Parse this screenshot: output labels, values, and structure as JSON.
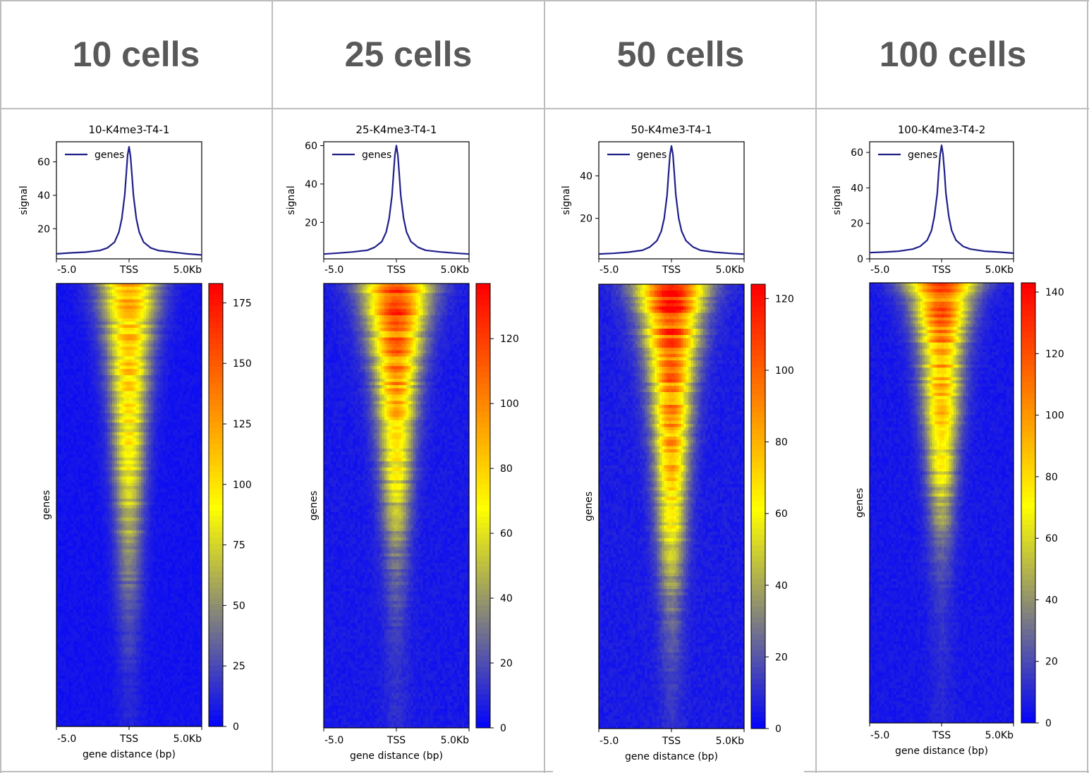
{
  "headers": [
    "10 cells",
    "25 cells",
    "50 cells",
    "100 cells"
  ],
  "chart_data": [
    {
      "type": "heatmap",
      "title": "10-K4me3-T4-1",
      "profile": {
        "type": "line",
        "legend": "genes",
        "legend_position": "top-left",
        "ylabel": "signal",
        "ylim": [
          2,
          72
        ],
        "yticks": [
          20,
          40,
          60
        ],
        "x": [
          -5000,
          -4000,
          -3000,
          -2000,
          -1500,
          -1000,
          -700,
          -500,
          -300,
          -200,
          -100,
          0,
          100,
          200,
          300,
          500,
          700,
          1000,
          1500,
          2000,
          3000,
          4000,
          5000
        ],
        "y": [
          5,
          5.6,
          6,
          7,
          8.5,
          12,
          18,
          26,
          40,
          52,
          64,
          69,
          63,
          52,
          40,
          26,
          18,
          12,
          8.5,
          7,
          6,
          5,
          4.3
        ],
        "xticks": [
          "-5.0",
          "TSS",
          "5.0Kb"
        ]
      },
      "heatmap": {
        "ylabel": "genes",
        "xlabel": "gene distance (bp)",
        "xticks": [
          "-5.0",
          "TSS",
          "5.0Kb"
        ],
        "colormap": [
          "#0000ff",
          "#ffff00",
          "#ff0000"
        ],
        "color_range": [
          0,
          183
        ],
        "colorbar_ticks": [
          0,
          25,
          50,
          75,
          100,
          125,
          150,
          175
        ],
        "peak_values_top_to_bottom": [
          110,
          108,
          105,
          100,
          98,
          95,
          90,
          85,
          78,
          70,
          62,
          52,
          42,
          32,
          24,
          18,
          14,
          10,
          8,
          7
        ],
        "peak_width_rows": [
          22,
          20,
          18,
          16,
          15,
          14,
          13,
          12,
          12,
          11,
          11,
          10,
          10,
          10,
          10,
          9,
          9,
          9,
          9,
          9
        ]
      }
    },
    {
      "type": "heatmap",
      "title": "25-K4me3-T4-1",
      "profile": {
        "type": "line",
        "legend": "genes",
        "legend_position": "top-left",
        "ylabel": "signal",
        "ylim": [
          1,
          62
        ],
        "yticks": [
          20,
          40,
          60
        ],
        "x": [
          -5000,
          -4000,
          -3000,
          -2000,
          -1500,
          -1000,
          -700,
          -500,
          -300,
          -200,
          -100,
          0,
          100,
          200,
          300,
          500,
          700,
          1000,
          1500,
          2000,
          3000,
          4000,
          5000
        ],
        "y": [
          3.5,
          4,
          4.6,
          5.5,
          7,
          10,
          15,
          22,
          34,
          45,
          55,
          60,
          55,
          45,
          34,
          22,
          15,
          10,
          7,
          5.5,
          4.6,
          4,
          3.5
        ],
        "xticks": [
          "-5.0",
          "TSS",
          "5.0Kb"
        ]
      },
      "heatmap": {
        "ylabel": "genes",
        "xlabel": "gene distance (bp)",
        "xticks": [
          "-5.0",
          "TSS",
          "5.0Kb"
        ],
        "colormap": [
          "#0000ff",
          "#ffff00",
          "#ff0000"
        ],
        "color_range": [
          0,
          137
        ],
        "colorbar_ticks": [
          0,
          20,
          40,
          60,
          80,
          100,
          120
        ],
        "peak_values_top_to_bottom": [
          120,
          112,
          105,
          98,
          92,
          85,
          78,
          70,
          62,
          52,
          42,
          32,
          24,
          18,
          14,
          10,
          8,
          7,
          6,
          6
        ],
        "peak_width_rows": [
          26,
          22,
          20,
          18,
          16,
          15,
          14,
          13,
          12,
          11,
          11,
          10,
          10,
          10,
          9,
          9,
          9,
          9,
          9,
          9
        ]
      }
    },
    {
      "type": "heatmap",
      "title": "50-K4me3-T4-1",
      "profile": {
        "type": "line",
        "legend": "genes",
        "legend_position": "top-left",
        "ylabel": "signal",
        "ylim": [
          1,
          56
        ],
        "yticks": [
          20,
          40
        ],
        "x": [
          -5000,
          -4000,
          -3000,
          -2000,
          -1500,
          -1000,
          -700,
          -500,
          -300,
          -200,
          -100,
          0,
          100,
          200,
          300,
          500,
          700,
          1000,
          1500,
          2000,
          3000,
          4000,
          5000
        ],
        "y": [
          3.3,
          3.6,
          4.1,
          5,
          6.5,
          9.5,
          14,
          20,
          31,
          41,
          50,
          54,
          50,
          41,
          31,
          20,
          14,
          9.5,
          6.5,
          5,
          4.1,
          3.6,
          3.2
        ],
        "xticks": [
          "-5.0",
          "TSS",
          "5.0Kb"
        ]
      },
      "heatmap": {
        "ylabel": "genes",
        "xlabel": "gene distance (bp)",
        "xticks": [
          "-5.0",
          "TSS",
          "5.0Kb"
        ],
        "colormap": [
          "#0000ff",
          "#ffff00",
          "#ff0000"
        ],
        "color_range": [
          0,
          124
        ],
        "colorbar_ticks": [
          0,
          20,
          40,
          60,
          80,
          100,
          120
        ],
        "peak_values_top_to_bottom": [
          115,
          108,
          100,
          95,
          90,
          85,
          80,
          75,
          70,
          64,
          58,
          50,
          40,
          30,
          22,
          16,
          12,
          9,
          7,
          6
        ],
        "peak_width_rows": [
          26,
          22,
          20,
          18,
          16,
          15,
          14,
          13,
          12,
          12,
          11,
          11,
          10,
          10,
          9,
          9,
          9,
          9,
          9,
          9
        ]
      }
    },
    {
      "type": "heatmap",
      "title": "100-K4me3-T4-2",
      "profile": {
        "type": "line",
        "legend": "genes",
        "legend_position": "top-left",
        "ylabel": "signal",
        "ylim": [
          0,
          66
        ],
        "yticks": [
          0,
          20,
          40,
          60
        ],
        "x": [
          -5000,
          -4000,
          -3000,
          -2000,
          -1500,
          -1000,
          -700,
          -500,
          -300,
          -200,
          -100,
          0,
          100,
          200,
          300,
          500,
          700,
          1000,
          1500,
          2000,
          3000,
          4000,
          5000
        ],
        "y": [
          3.5,
          3.8,
          4.3,
          5.5,
          7,
          10.5,
          16,
          24,
          37,
          49,
          59,
          64,
          59,
          49,
          37,
          24,
          16,
          10.5,
          7,
          5.5,
          4.3,
          3.8,
          3.2
        ],
        "xticks": [
          "-5.0",
          "TSS",
          "5.0Kb"
        ]
      },
      "heatmap": {
        "ylabel": "genes",
        "xlabel": "gene distance (bp)",
        "xticks": [
          "-5.0",
          "TSS",
          "5.0Kb"
        ],
        "colormap": [
          "#0000ff",
          "#ffff00",
          "#ff0000"
        ],
        "color_range": [
          0,
          143
        ],
        "colorbar_ticks": [
          0,
          20,
          40,
          60,
          80,
          100,
          120,
          140
        ],
        "peak_values_top_to_bottom": [
          118,
          110,
          102,
          95,
          88,
          82,
          76,
          70,
          62,
          52,
          40,
          28,
          18,
          12,
          9,
          7,
          6,
          5,
          5,
          5
        ],
        "peak_width_rows": [
          26,
          20,
          18,
          16,
          15,
          14,
          13,
          12,
          11,
          11,
          10,
          10,
          10,
          9,
          9,
          9,
          9,
          9,
          9,
          9
        ]
      }
    }
  ]
}
